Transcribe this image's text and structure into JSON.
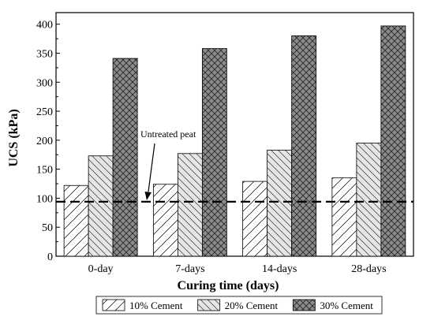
{
  "chart_data": {
    "type": "bar",
    "categories": [
      "0-day",
      "7-days",
      "14-days",
      "28-days"
    ],
    "series": [
      {
        "name": "10% Cement",
        "values": [
          122,
          124,
          129,
          135
        ],
        "pattern": "forward-hatch"
      },
      {
        "name": "20% Cement",
        "values": [
          173,
          177,
          183,
          195
        ],
        "pattern": "back-hatch"
      },
      {
        "name": "30% Cement",
        "values": [
          341,
          358,
          380,
          397
        ],
        "pattern": "cross-hatch"
      }
    ],
    "xlabel": "Curing time (days)",
    "ylabel": "UCS (kPa)",
    "ylim": [
      0,
      420
    ],
    "yticks": [
      0,
      50,
      100,
      150,
      200,
      250,
      300,
      350,
      400
    ],
    "reference_line": {
      "value": 94,
      "label": "Untreated peat",
      "style": "dashed"
    },
    "legend_position": "bottom",
    "grid": false,
    "colors": {
      "bar_light": "#ffffff",
      "bar_mid": "#e6e6e6",
      "bar_dark": "#8c8c8c",
      "stroke": "#000000"
    }
  }
}
